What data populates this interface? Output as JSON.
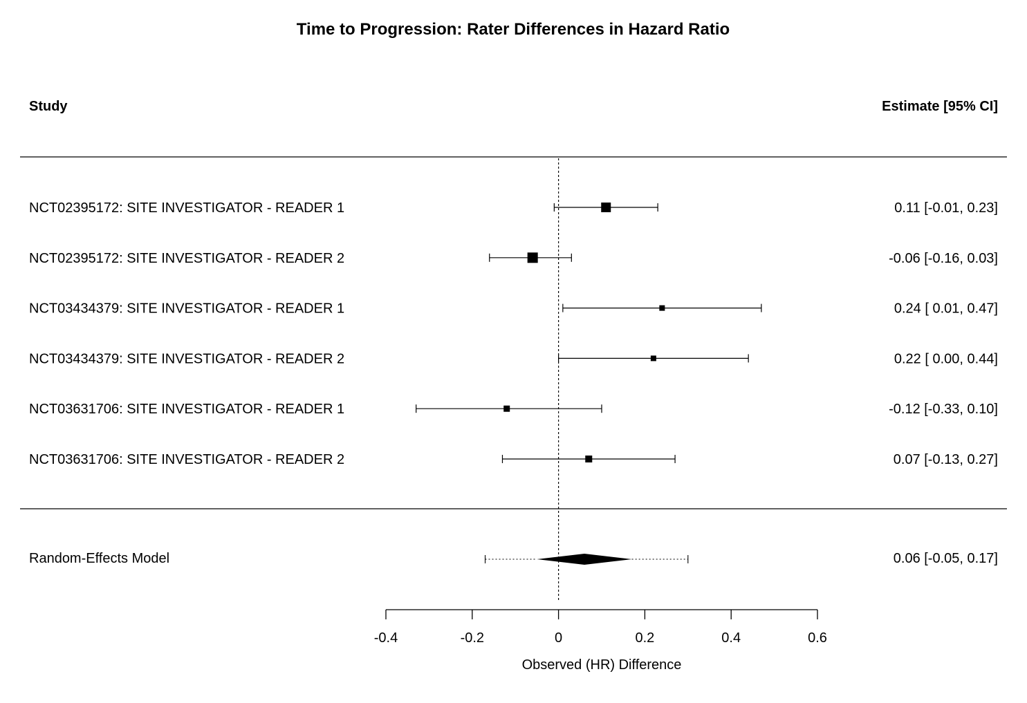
{
  "chart_data": {
    "type": "forest",
    "title": "Time to Progression: Rater Differences in Hazard Ratio",
    "column_headers": {
      "study": "Study",
      "estimate": "Estimate [95% CI]"
    },
    "xlabel": "Observed (HR) Difference",
    "xlim": [
      -0.4,
      0.6
    ],
    "x_ticks": [
      -0.4,
      -0.2,
      0,
      0.2,
      0.4,
      0.6
    ],
    "x_tick_labels": [
      "-0.4",
      "-0.2",
      "0",
      "0.2",
      "0.4",
      "0.6"
    ],
    "reference_line": 0,
    "studies": [
      {
        "label": "NCT02395172: SITE INVESTIGATOR - READER 1",
        "estimate": 0.11,
        "lower": -0.01,
        "upper": 0.23,
        "weight": 1.0,
        "estimate_text": "0.11 [-0.01, 0.23]"
      },
      {
        "label": "NCT02395172: SITE INVESTIGATOR - READER 2",
        "estimate": -0.06,
        "lower": -0.16,
        "upper": 0.03,
        "weight": 1.1,
        "estimate_text": "-0.06 [-0.16, 0.03]"
      },
      {
        "label": "NCT03434379: SITE INVESTIGATOR - READER 1",
        "estimate": 0.24,
        "lower": 0.01,
        "upper": 0.47,
        "weight": 0.4,
        "estimate_text": "0.24 [ 0.01, 0.47]"
      },
      {
        "label": "NCT03434379: SITE INVESTIGATOR - READER 2",
        "estimate": 0.22,
        "lower": 0.0,
        "upper": 0.44,
        "weight": 0.4,
        "estimate_text": "0.22 [ 0.00, 0.44]"
      },
      {
        "label": "NCT03631706: SITE INVESTIGATOR - READER 1",
        "estimate": -0.12,
        "lower": -0.33,
        "upper": 0.1,
        "weight": 0.5,
        "estimate_text": "-0.12 [-0.33, 0.10]"
      },
      {
        "label": "NCT03631706: SITE INVESTIGATOR - READER 2",
        "estimate": 0.07,
        "lower": -0.13,
        "upper": 0.27,
        "weight": 0.6,
        "estimate_text": "0.07 [-0.13, 0.27]"
      }
    ],
    "summary": {
      "label": "Random-Effects Model",
      "estimate": 0.06,
      "lower": -0.05,
      "upper": 0.17,
      "pi_lower": -0.17,
      "pi_upper": 0.3,
      "estimate_text": "0.06 [-0.05, 0.17]"
    }
  }
}
